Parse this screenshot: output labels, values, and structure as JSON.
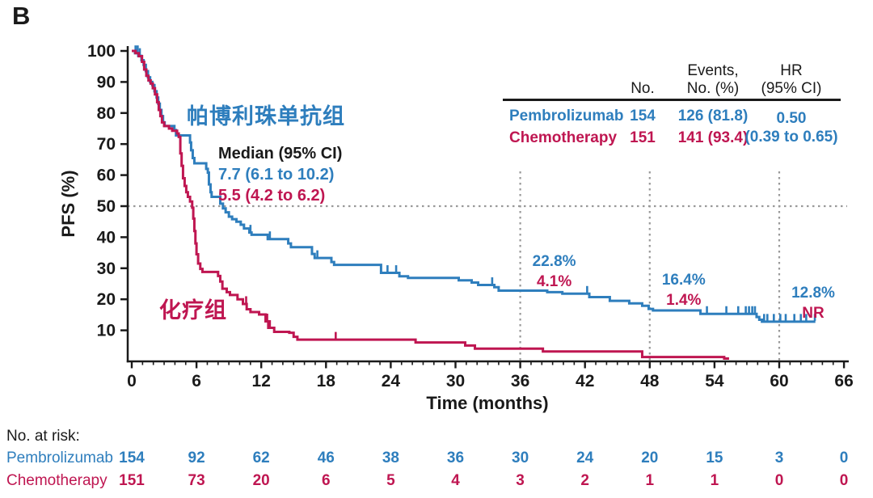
{
  "panel_label": "B",
  "colors": {
    "pembrolizumab": "#2E7EBD",
    "chemotherapy": "#BF1651",
    "axis": "#1a1a1a",
    "dotted_line": "#999999"
  },
  "group_labels": {
    "pembrolizumab": "帕博利珠单抗组",
    "chemotherapy": "化疗组"
  },
  "median_box": {
    "title": "Median (95% CI)",
    "pembrolizumab": "7.7 (6.1 to 10.2)",
    "chemotherapy": "5.5 (4.2 to 6.2)"
  },
  "summary_table": {
    "col_no": "No.",
    "col_events": "Events,\nNo. (%)",
    "col_hr": "HR\n(95% CI)",
    "rows": [
      {
        "name": "Pembrolizumab",
        "no": "154",
        "events": "126 (81.8)"
      },
      {
        "name": "Chemotherapy",
        "no": "151",
        "events": "141 (93.4)"
      }
    ],
    "hr_value": "0.50",
    "hr_ci": "(0.39 to 0.65)"
  },
  "timepoint_annotations": [
    {
      "month": 36,
      "pembrolizumab": "22.8%",
      "chemotherapy": "4.1%"
    },
    {
      "month": 48,
      "pembrolizumab": "16.4%",
      "chemotherapy": "1.4%"
    },
    {
      "month": 60,
      "pembrolizumab": "12.8%",
      "chemotherapy": "NR"
    }
  ],
  "risk_table": {
    "title": "No. at risk:",
    "rows": [
      {
        "name": "Pembrolizumab",
        "counts": [
          154,
          92,
          62,
          46,
          38,
          36,
          30,
          24,
          20,
          15,
          3,
          0
        ]
      },
      {
        "name": "Chemotherapy",
        "counts": [
          151,
          73,
          20,
          6,
          5,
          4,
          3,
          2,
          1,
          1,
          0,
          0
        ]
      }
    ]
  },
  "chart_data": {
    "type": "line",
    "subtype": "kaplan-meier-step",
    "title": "",
    "xlabel": "Time (months)",
    "ylabel": "PFS (%)",
    "xlim": [
      0,
      66
    ],
    "ylim": [
      0,
      100
    ],
    "x_ticks": [
      0,
      6,
      12,
      18,
      24,
      30,
      36,
      42,
      48,
      54,
      60,
      66
    ],
    "y_ticks": [
      10,
      20,
      30,
      40,
      50,
      60,
      70,
      80,
      90,
      100
    ],
    "grid": false,
    "reference_lines": {
      "horizontal_pct": 50,
      "vertical_months": [
        36,
        48,
        60
      ]
    },
    "series": [
      {
        "name": "Pembrolizumab",
        "color": "#2E7EBD",
        "steps": [
          [
            0,
            100
          ],
          [
            0.3,
            99.3
          ],
          [
            0.6,
            98.4
          ],
          [
            0.9,
            97
          ],
          [
            1.1,
            95.5
          ],
          [
            1.3,
            93.5
          ],
          [
            1.5,
            91.5
          ],
          [
            1.7,
            90
          ],
          [
            1.9,
            89
          ],
          [
            2.1,
            87
          ],
          [
            2.3,
            85
          ],
          [
            2.45,
            83
          ],
          [
            2.6,
            81
          ],
          [
            2.75,
            79
          ],
          [
            2.9,
            77
          ],
          [
            3.05,
            75.8
          ],
          [
            3.95,
            74.5
          ],
          [
            4.1,
            72.8
          ],
          [
            5.4,
            70.5
          ],
          [
            5.5,
            68
          ],
          [
            5.65,
            65.5
          ],
          [
            5.8,
            63.8
          ],
          [
            6.9,
            62
          ],
          [
            7.05,
            60.8
          ],
          [
            7.15,
            57
          ],
          [
            7.3,
            54.5
          ],
          [
            7.4,
            53
          ],
          [
            8.2,
            50.8
          ],
          [
            8.45,
            49.3
          ],
          [
            8.7,
            48
          ],
          [
            9.0,
            46.6
          ],
          [
            9.3,
            45.8
          ],
          [
            9.7,
            45
          ],
          [
            10.1,
            44
          ],
          [
            10.4,
            42.8
          ],
          [
            10.9,
            41.5
          ],
          [
            11.1,
            40.8
          ],
          [
            12.6,
            39.4
          ],
          [
            14.5,
            38
          ],
          [
            14.75,
            36.8
          ],
          [
            16.7,
            34.6
          ],
          [
            16.95,
            33.3
          ],
          [
            18.5,
            32
          ],
          [
            18.75,
            31.1
          ],
          [
            23.1,
            28.5
          ],
          [
            24.8,
            27.4
          ],
          [
            25.6,
            26.9
          ],
          [
            30.3,
            26.1
          ],
          [
            31.5,
            25.4
          ],
          [
            32.1,
            24.6
          ],
          [
            33.6,
            23.9
          ],
          [
            34.0,
            22.8
          ],
          [
            38.5,
            22.3
          ],
          [
            39.9,
            21.8
          ],
          [
            42.4,
            20.7
          ],
          [
            44.3,
            19.5
          ],
          [
            46.1,
            18.7
          ],
          [
            47.3,
            17.9
          ],
          [
            47.9,
            16.9
          ],
          [
            48.3,
            16.4
          ],
          [
            52.7,
            15.3
          ],
          [
            57.9,
            14.3
          ],
          [
            58.15,
            13.4
          ],
          [
            58.4,
            12.8
          ],
          [
            63.35,
            12.8
          ]
        ],
        "censor_ticks": [
          0.35,
          0.55,
          0.75,
          11.0,
          12.8,
          17.2,
          23.7,
          24.5,
          33.4,
          42.2,
          53.3,
          55.1,
          56.2,
          56.9,
          57.2,
          57.5,
          57.75,
          58.6,
          58.9,
          59.5,
          60.1,
          60.6,
          61.4,
          62.0,
          62.5,
          63.3
        ]
      },
      {
        "name": "Chemotherapy",
        "color": "#BF1651",
        "steps": [
          [
            0,
            100
          ],
          [
            0.35,
            99.3
          ],
          [
            0.65,
            98.3
          ],
          [
            0.95,
            96.5
          ],
          [
            1.15,
            94
          ],
          [
            1.35,
            92
          ],
          [
            1.55,
            90.5
          ],
          [
            1.75,
            89.5
          ],
          [
            1.95,
            88
          ],
          [
            2.15,
            86
          ],
          [
            2.35,
            83.5
          ],
          [
            2.5,
            81
          ],
          [
            2.65,
            79
          ],
          [
            2.8,
            77
          ],
          [
            3.0,
            75.8
          ],
          [
            3.45,
            75
          ],
          [
            3.75,
            74.3
          ],
          [
            4.2,
            73.4
          ],
          [
            4.35,
            72.3
          ],
          [
            4.5,
            67
          ],
          [
            4.62,
            63
          ],
          [
            4.75,
            59
          ],
          [
            4.9,
            56.5
          ],
          [
            5.05,
            54.5
          ],
          [
            5.2,
            53
          ],
          [
            5.4,
            51.5
          ],
          [
            5.6,
            49.5
          ],
          [
            5.7,
            46
          ],
          [
            5.8,
            42
          ],
          [
            5.9,
            38
          ],
          [
            6.0,
            34.5
          ],
          [
            6.15,
            31.5
          ],
          [
            6.35,
            29.8
          ],
          [
            6.55,
            28.8
          ],
          [
            8.0,
            27.5
          ],
          [
            8.2,
            25.7
          ],
          [
            8.4,
            23.4
          ],
          [
            8.8,
            22.3
          ],
          [
            9.1,
            21.4
          ],
          [
            9.8,
            20
          ],
          [
            10.3,
            18.5
          ],
          [
            10.65,
            16.8
          ],
          [
            11.0,
            15.9
          ],
          [
            11.8,
            15.1
          ],
          [
            12.4,
            12.9
          ],
          [
            12.65,
            10.8
          ],
          [
            13.2,
            9.5
          ],
          [
            14.6,
            9.2
          ],
          [
            15.0,
            7.9
          ],
          [
            15.35,
            7.0
          ],
          [
            26.3,
            6.1
          ],
          [
            30.9,
            5.1
          ],
          [
            31.8,
            4.1
          ],
          [
            38.1,
            3.2
          ],
          [
            47.3,
            1.4
          ],
          [
            54.9,
            0.9
          ],
          [
            55.35,
            0.9
          ]
        ],
        "censor_ticks": [
          10.6,
          12.55,
          12.8,
          18.9
        ]
      }
    ]
  }
}
